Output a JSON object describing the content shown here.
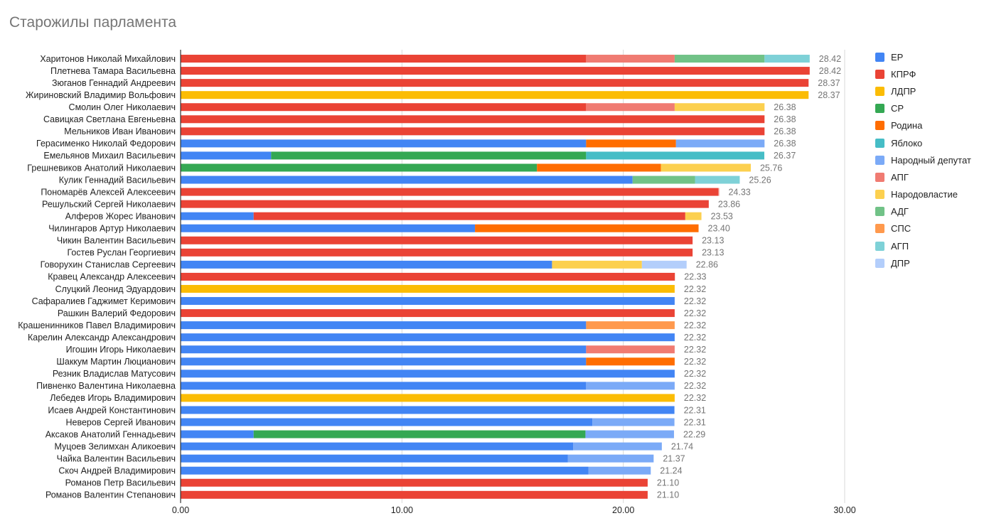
{
  "chart_data": {
    "type": "bar",
    "orientation": "horizontal",
    "stacked": true,
    "title": "Старожилы парламента",
    "xlabel": "",
    "ylabel": "",
    "xlim": [
      0,
      30
    ],
    "x_ticks": [
      "0.00",
      "10.00",
      "20.00",
      "30.00"
    ],
    "grid": true,
    "legend_position": "right",
    "parties": [
      {
        "name": "ЕР",
        "color": "#4285f4"
      },
      {
        "name": "КПРФ",
        "color": "#ea4335"
      },
      {
        "name": "ЛДПР",
        "color": "#fbbc04"
      },
      {
        "name": "СР",
        "color": "#34a853"
      },
      {
        "name": "Родина",
        "color": "#ff6d01"
      },
      {
        "name": "Яблоко",
        "color": "#46bdc6"
      },
      {
        "name": "Народный депутат",
        "color": "#7baaf7"
      },
      {
        "name": "АПГ",
        "color": "#f07b72"
      },
      {
        "name": "Народовластие",
        "color": "#fcd04f"
      },
      {
        "name": "АДГ",
        "color": "#71c287"
      },
      {
        "name": "СПС",
        "color": "#ff994d"
      },
      {
        "name": "АГП",
        "color": "#7ed1d7"
      },
      {
        "name": "ДПР",
        "color": "#b3cefb"
      }
    ],
    "rows": [
      {
        "name": "Харитонов Николай Михайлович",
        "total_label": "28.42",
        "segments": [
          [
            "КПРФ",
            18.32
          ],
          [
            "АПГ",
            4.0
          ],
          [
            "АДГ",
            4.06
          ],
          [
            "АГП",
            2.04
          ]
        ]
      },
      {
        "name": "Плетнева Тамара Васильевна",
        "total_label": "28.42",
        "segments": [
          [
            "КПРФ",
            28.42
          ]
        ]
      },
      {
        "name": "Зюганов Геннадий Андреевич",
        "total_label": "28.37",
        "segments": [
          [
            "КПРФ",
            28.37
          ]
        ]
      },
      {
        "name": "Жириновский Владимир Вольфович",
        "total_label": "28.37",
        "segments": [
          [
            "ЛДПР",
            28.37
          ]
        ]
      },
      {
        "name": "Смолин Олег Николаевич",
        "total_label": "26.38",
        "segments": [
          [
            "КПРФ",
            18.32
          ],
          [
            "АПГ",
            4.0
          ],
          [
            "Народовластие",
            4.06
          ]
        ]
      },
      {
        "name": "Савицкая Светлана Евгеньевна",
        "total_label": "26.38",
        "segments": [
          [
            "КПРФ",
            26.38
          ]
        ]
      },
      {
        "name": "Мельников Иван Иванович",
        "total_label": "26.38",
        "segments": [
          [
            "КПРФ",
            26.38
          ]
        ]
      },
      {
        "name": "Герасименко Николай Федорович",
        "total_label": "26.38",
        "segments": [
          [
            "ЕР",
            18.32
          ],
          [
            "Родина",
            4.06
          ],
          [
            "Народный депутат",
            4.0
          ]
        ]
      },
      {
        "name": "Емельянов Михаил Васильевич",
        "total_label": "26.37",
        "segments": [
          [
            "ЕР",
            4.09
          ],
          [
            "СР",
            14.23
          ],
          [
            "Яблоко",
            8.05
          ]
        ]
      },
      {
        "name": "Грешневиков Анатолий Николаевич",
        "total_label": "25.76",
        "segments": [
          [
            "СР",
            16.1
          ],
          [
            "Родина",
            5.6
          ],
          [
            "Народовластие",
            4.06
          ]
        ]
      },
      {
        "name": "Кулик Геннадий Васильевич",
        "total_label": "25.26",
        "segments": [
          [
            "ЕР",
            20.42
          ],
          [
            "АДГ",
            2.82
          ],
          [
            "АГП",
            2.02
          ]
        ]
      },
      {
        "name": "Пономарёв Алексей Алексеевич",
        "total_label": "24.33",
        "segments": [
          [
            "КПРФ",
            24.29
          ],
          [
            "АПГ",
            0.04
          ]
        ]
      },
      {
        "name": "Решульский Сергей Николаевич",
        "total_label": "23.86",
        "segments": [
          [
            "КПРФ",
            23.86
          ]
        ]
      },
      {
        "name": "Алферов Жорес Иванович",
        "total_label": "23.53",
        "segments": [
          [
            "ЕР",
            3.3
          ],
          [
            "КПРФ",
            19.5
          ],
          [
            "Народовластие",
            0.73
          ]
        ]
      },
      {
        "name": "Чилингаров Артур Николаевич",
        "total_label": "23.40",
        "segments": [
          [
            "ЕР",
            13.3
          ],
          [
            "Родина",
            10.1
          ]
        ]
      },
      {
        "name": "Чикин Валентин Васильевич",
        "total_label": "23.13",
        "segments": [
          [
            "КПРФ",
            23.13
          ]
        ]
      },
      {
        "name": "Гостев Руслан Георгиевич",
        "total_label": "23.13",
        "segments": [
          [
            "КПРФ",
            23.13
          ]
        ]
      },
      {
        "name": "Говорухин Станислав Сергеевич",
        "total_label": "22.86",
        "segments": [
          [
            "ЕР",
            16.78
          ],
          [
            "Народовластие",
            4.06
          ],
          [
            "ДПР",
            2.02
          ]
        ]
      },
      {
        "name": "Кравец Александр Алексеевич",
        "total_label": "22.33",
        "segments": [
          [
            "КПРФ",
            22.33
          ]
        ]
      },
      {
        "name": "Слуцкий Леонид Эдуардович",
        "total_label": "22.32",
        "segments": [
          [
            "ЛДПР",
            22.32
          ]
        ]
      },
      {
        "name": "Сафаралиев Гаджимет Керимович",
        "total_label": "22.32",
        "segments": [
          [
            "ЕР",
            22.32
          ]
        ]
      },
      {
        "name": "Рашкин Валерий Федорович",
        "total_label": "22.32",
        "segments": [
          [
            "КПРФ",
            22.32
          ]
        ]
      },
      {
        "name": "Крашенинников Павел Владимирович",
        "total_label": "22.32",
        "segments": [
          [
            "ЕР",
            18.32
          ],
          [
            "СПС",
            4.0
          ]
        ]
      },
      {
        "name": "Карелин Александр Александрович",
        "total_label": "22.32",
        "segments": [
          [
            "ЕР",
            22.32
          ]
        ]
      },
      {
        "name": "Игошин Игорь Николаевич",
        "total_label": "22.32",
        "segments": [
          [
            "ЕР",
            18.32
          ],
          [
            "АПГ",
            4.0
          ]
        ]
      },
      {
        "name": "Шаккум Мартин Люцианович",
        "total_label": "22.32",
        "segments": [
          [
            "ЕР",
            18.32
          ],
          [
            "Родина",
            4.0
          ]
        ]
      },
      {
        "name": "Резник Владислав Матусович",
        "total_label": "22.32",
        "segments": [
          [
            "ЕР",
            22.32
          ]
        ]
      },
      {
        "name": "Пивненко Валентина Николаевна",
        "total_label": "22.32",
        "segments": [
          [
            "ЕР",
            18.32
          ],
          [
            "Народный депутат",
            4.0
          ]
        ]
      },
      {
        "name": "Лебедев Игорь Владимирович",
        "total_label": "22.32",
        "segments": [
          [
            "ЛДПР",
            22.32
          ]
        ]
      },
      {
        "name": "Исаев Андрей Константинович",
        "total_label": "22.31",
        "segments": [
          [
            "ЕР",
            22.31
          ]
        ]
      },
      {
        "name": "Неверов Сергей Иванович",
        "total_label": "22.31",
        "segments": [
          [
            "ЕР",
            18.6
          ],
          [
            "Народный депутат",
            3.71
          ]
        ]
      },
      {
        "name": "Аксаков Анатолий Геннадьевич",
        "total_label": "22.29",
        "segments": [
          [
            "ЕР",
            3.3
          ],
          [
            "СР",
            14.99
          ],
          [
            "Народный депутат",
            4.0
          ]
        ]
      },
      {
        "name": "Муцоев Зелимхан Аликоевич",
        "total_label": "21.74",
        "segments": [
          [
            "ЕР",
            17.74
          ],
          [
            "Народный депутат",
            4.0
          ]
        ]
      },
      {
        "name": "Чайка Валентин Васильевич",
        "total_label": "21.37",
        "segments": [
          [
            "ЕР",
            17.5
          ],
          [
            "Народный депутат",
            3.87
          ]
        ]
      },
      {
        "name": "Скоч Андрей Владимирович",
        "total_label": "21.24",
        "segments": [
          [
            "ЕР",
            18.42
          ],
          [
            "Народный депутат",
            2.82
          ]
        ]
      },
      {
        "name": "Романов Петр Васильевич",
        "total_label": "21.10",
        "segments": [
          [
            "КПРФ",
            21.1
          ]
        ]
      },
      {
        "name": "Романов Валентин Степанович",
        "total_label": "21.10",
        "segments": [
          [
            "КПРФ",
            21.1
          ]
        ]
      }
    ]
  }
}
